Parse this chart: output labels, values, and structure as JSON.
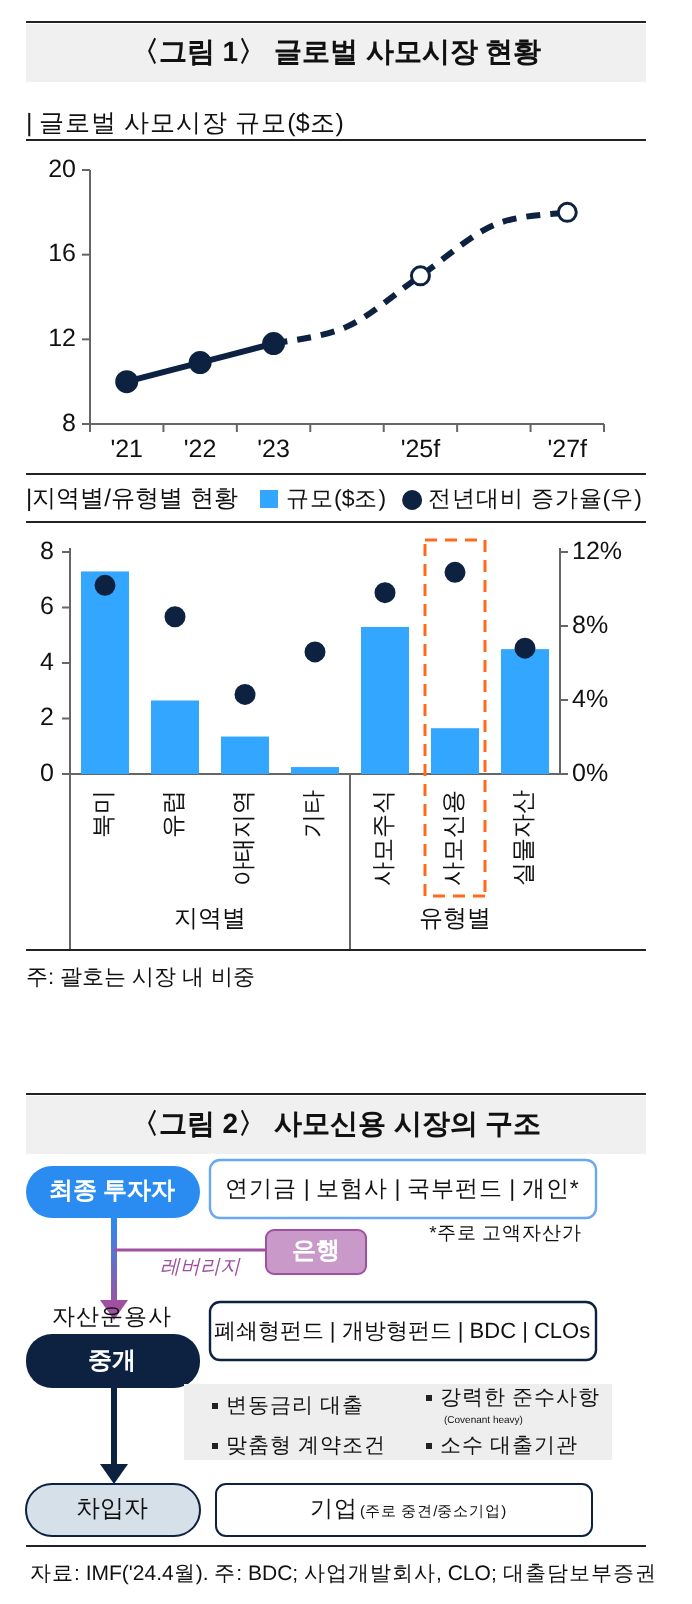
{
  "chart_data": [
    {
      "type": "line",
      "title": "〈그림 1〉 글로벌 사모시장 현황",
      "subtitle": "| 글로벌 사모시장 규모($조)",
      "categories": [
        "'21",
        "'22",
        "'23",
        null,
        "'25f",
        null,
        "'27f"
      ],
      "ylim": [
        8,
        20
      ],
      "yticks": [
        8,
        12,
        16,
        20
      ],
      "series": [
        {
          "color": "#0d2240",
          "values": [
            10,
            10.9,
            11.8,
            null,
            null,
            null,
            null
          ],
          "marker": "circle",
          "line_style": "solid"
        },
        {
          "color": "#0d2240",
          "values": [
            null,
            null,
            11.8,
            12.6,
            15,
            17.4,
            18
          ],
          "marker": "none",
          "line_style": "dashed"
        },
        {
          "type": "scatter",
          "color": "#0d2240",
          "values": [
            null,
            null,
            null,
            null,
            15,
            null,
            18
          ],
          "marker": "circle"
        }
      ]
    },
    {
      "type": "bar",
      "title": "|지역별/유형별 현황",
      "categories": [
        "북미",
        "유럽",
        "아태지역",
        "기타",
        "사모주식",
        "사모신용",
        "실물자산"
      ],
      "ylim": [
        0,
        8
      ],
      "yticks": [
        0,
        2,
        4,
        6,
        8
      ],
      "y2lim": [
        0,
        12
      ],
      "y2ticks": [
        {
          "value": 0,
          "label": "0%"
        },
        {
          "value": 4,
          "label": "4%"
        },
        {
          "value": 8,
          "label": "8%"
        },
        {
          "value": 12,
          "label": "12%"
        }
      ],
      "legend": "top",
      "series": [
        {
          "name": "규모($조)",
          "color": "#33a6ff",
          "values": [
            7.3,
            2.65,
            1.35,
            0.25,
            5.3,
            1.65,
            4.5
          ]
        },
        {
          "name": "전년대비 증가율(우)",
          "type": "scatter",
          "axis": "y2",
          "color": "#0d2240",
          "marker": "circle",
          "values": [
            10.2,
            8.5,
            4.3,
            6.6,
            9.8,
            10.9,
            6.8
          ]
        }
      ],
      "annotations": [
        "지역별",
        "유형별",
        "주: 괄호는 시장 내 비중"
      ]
    },
    {
      "type": "other",
      "title": "〈그림 2〉 사모신용 시장의 구조",
      "annotations": [
        "최종 투자자",
        "연기금 | 보험사 | 국부펀드 | 개인*",
        "*주로 고액자산가",
        "은행",
        "레버리지",
        "자산운용사",
        "중개",
        "폐쇄형펀드 | 개방형펀드 | BDC | CLOs",
        "변동금리 대출",
        "강력한 준수사항",
        "(Covenant heavy)",
        "맞춤형 계약조건",
        "소수 대출기관",
        "차입자",
        "기업",
        "(주로 중견/중소기업)",
        "자료: IMF('24.4월). 주: BDC; 사업개발회사, CLO; 대출담보부증권"
      ]
    }
  ]
}
